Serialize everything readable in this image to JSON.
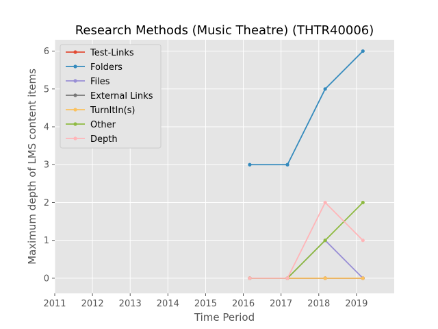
{
  "chart_data": {
    "type": "line",
    "title": "Research Methods (Music Theatre) (THTR40006)",
    "xlabel": "Time Period",
    "ylabel": "Maximum depth of LMS content items",
    "xlim": [
      2011,
      2020
    ],
    "ylim": [
      -0.4,
      6.3
    ],
    "x_ticks": [
      2011,
      2012,
      2013,
      2014,
      2015,
      2016,
      2017,
      2018,
      2019
    ],
    "y_ticks": [
      0,
      1,
      2,
      3,
      4,
      5,
      6
    ],
    "grid": true,
    "legend_position": "top-left",
    "series": [
      {
        "name": "Test-Links",
        "color": "#E24A33",
        "x": [
          2016.17,
          2017.17,
          2018.17,
          2019.17
        ],
        "values": [
          0,
          0,
          0,
          0
        ]
      },
      {
        "name": "Folders",
        "color": "#348ABD",
        "x": [
          2016.17,
          2017.17,
          2018.17,
          2019.17
        ],
        "values": [
          3,
          3,
          5,
          6
        ]
      },
      {
        "name": "Files",
        "color": "#988ED5",
        "x": [
          2016.17,
          2017.17,
          2018.17,
          2019.17
        ],
        "values": [
          0,
          0,
          1,
          0
        ]
      },
      {
        "name": "External Links",
        "color": "#777777",
        "x": [
          2016.17,
          2017.17,
          2018.17,
          2019.17
        ],
        "values": [
          0,
          0,
          0,
          0
        ]
      },
      {
        "name": "TurnItIn(s)",
        "color": "#FBC15E",
        "x": [
          2016.17,
          2017.17,
          2018.17,
          2019.17
        ],
        "values": [
          0,
          0,
          0,
          0
        ]
      },
      {
        "name": "Other",
        "color": "#8EBA42",
        "x": [
          2016.17,
          2017.17,
          2018.17,
          2019.17
        ],
        "values": [
          0,
          0,
          1,
          2
        ]
      },
      {
        "name": "Depth",
        "color": "#FFB5B8",
        "x": [
          2016.17,
          2017.17,
          2018.17,
          2019.17
        ],
        "values": [
          0,
          0,
          2,
          1
        ]
      }
    ]
  }
}
